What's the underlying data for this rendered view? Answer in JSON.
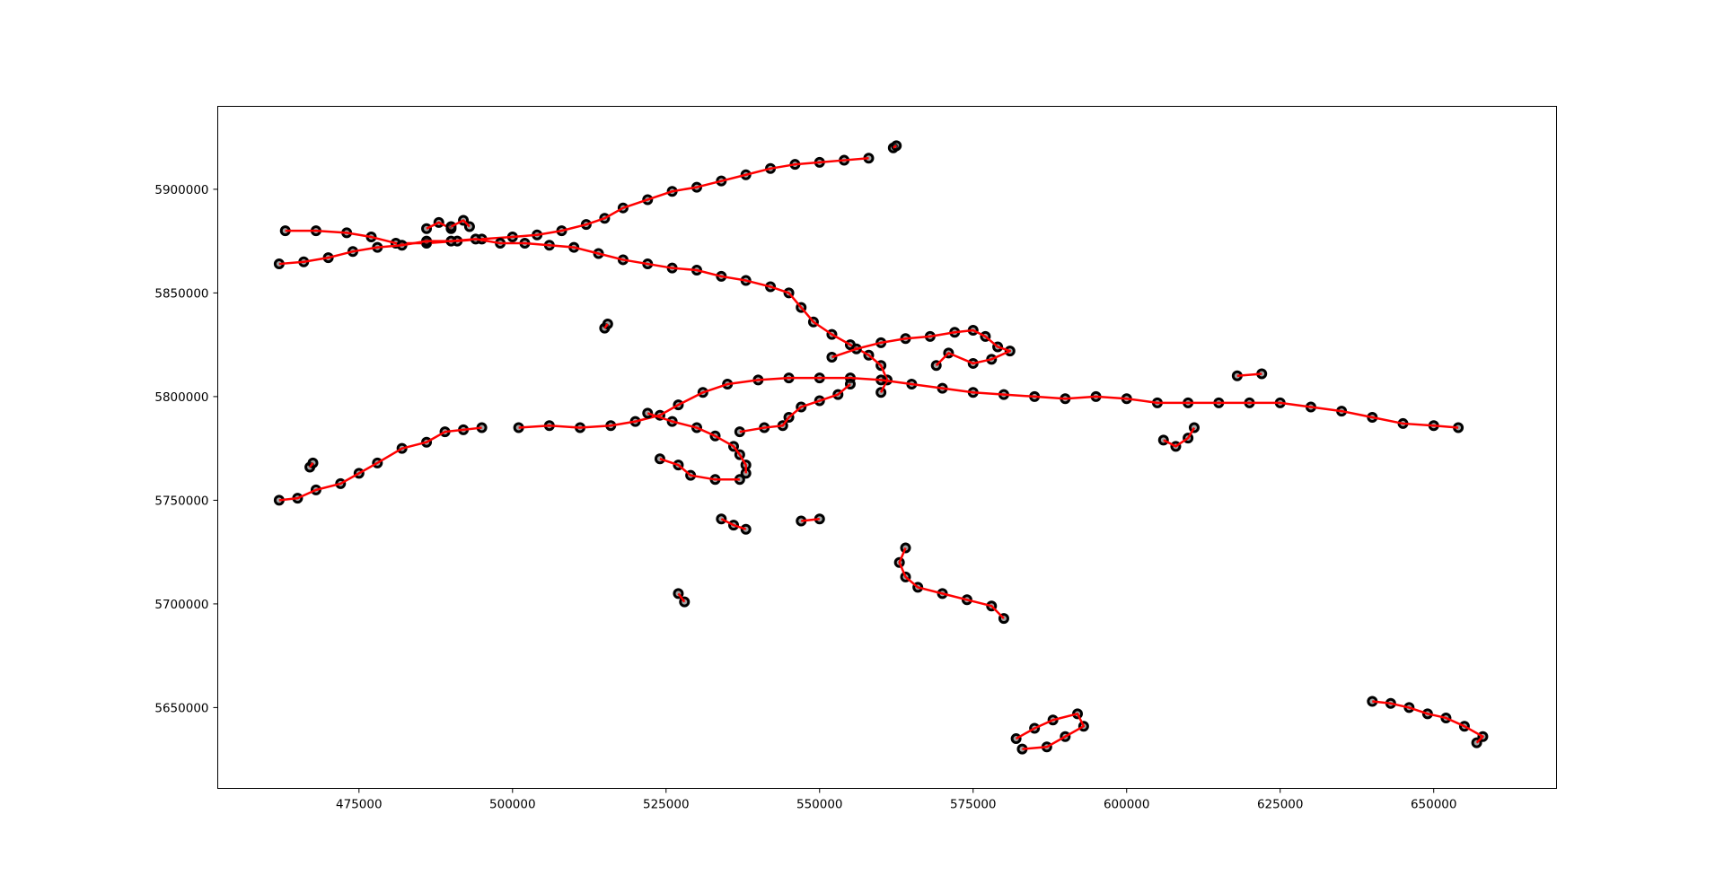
{
  "chart_data": {
    "type": "scatter",
    "title": "",
    "xlabel": "",
    "ylabel": "",
    "xlim": [
      452000,
      670000
    ],
    "ylim": [
      5611000,
      5940000
    ],
    "grid": false,
    "x_ticks": [
      475000,
      500000,
      525000,
      550000,
      575000,
      600000,
      625000,
      650000
    ],
    "y_ticks": [
      5650000,
      5700000,
      5750000,
      5800000,
      5850000,
      5900000
    ],
    "x_tick_labels": [
      "475000",
      "500000",
      "525000",
      "550000",
      "575000",
      "600000",
      "625000",
      "650000"
    ],
    "y_tick_labels": [
      "5650000",
      "5700000",
      "5750000",
      "5800000",
      "5850000",
      "5900000"
    ],
    "colors": {
      "marker_edge": "#000000",
      "marker_fill": "#555555",
      "line": "#ff0000"
    },
    "series": [
      {
        "points": [
          [
            463000,
            5880000
          ],
          [
            468000,
            5880000
          ],
          [
            473000,
            5879000
          ],
          [
            477000,
            5877000
          ],
          [
            481000,
            5874000
          ],
          [
            486000,
            5874000
          ],
          [
            491000,
            5875000
          ],
          [
            495000,
            5876000
          ],
          [
            500000,
            5877000
          ],
          [
            504000,
            5878000
          ],
          [
            508000,
            5880000
          ],
          [
            512000,
            5883000
          ],
          [
            515000,
            5886000
          ],
          [
            518000,
            5891000
          ],
          [
            522000,
            5895000
          ],
          [
            526000,
            5899000
          ],
          [
            530000,
            5901000
          ],
          [
            534000,
            5904000
          ],
          [
            538000,
            5907000
          ],
          [
            542000,
            5910000
          ],
          [
            546000,
            5912000
          ],
          [
            550000,
            5913000
          ],
          [
            554000,
            5914000
          ],
          [
            558000,
            5915000
          ]
        ]
      },
      {
        "points": [
          [
            462000,
            5864000
          ],
          [
            466000,
            5865000
          ],
          [
            470000,
            5867000
          ],
          [
            474000,
            5870000
          ],
          [
            478000,
            5872000
          ],
          [
            482000,
            5873000
          ],
          [
            486000,
            5875000
          ],
          [
            490000,
            5875000
          ],
          [
            494000,
            5876000
          ],
          [
            498000,
            5874000
          ],
          [
            502000,
            5874000
          ],
          [
            506000,
            5873000
          ],
          [
            510000,
            5872000
          ],
          [
            514000,
            5869000
          ],
          [
            518000,
            5866000
          ],
          [
            522000,
            5864000
          ],
          [
            526000,
            5862000
          ],
          [
            530000,
            5861000
          ],
          [
            534000,
            5858000
          ],
          [
            538000,
            5856000
          ],
          [
            542000,
            5853000
          ],
          [
            545000,
            5850000
          ],
          [
            547000,
            5843000
          ],
          [
            549000,
            5836000
          ],
          [
            552000,
            5830000
          ],
          [
            555000,
            5825000
          ],
          [
            558000,
            5820000
          ],
          [
            560000,
            5815000
          ],
          [
            561000,
            5808000
          ],
          [
            560000,
            5802000
          ]
        ]
      },
      {
        "points": [
          [
            501000,
            5785000
          ],
          [
            506000,
            5786000
          ],
          [
            511000,
            5785000
          ],
          [
            516000,
            5786000
          ],
          [
            520000,
            5788000
          ],
          [
            524000,
            5791000
          ],
          [
            527000,
            5796000
          ],
          [
            531000,
            5802000
          ],
          [
            535000,
            5806000
          ],
          [
            540000,
            5808000
          ],
          [
            545000,
            5809000
          ],
          [
            550000,
            5809000
          ],
          [
            555000,
            5809000
          ],
          [
            560000,
            5808000
          ],
          [
            565000,
            5806000
          ],
          [
            570000,
            5804000
          ],
          [
            575000,
            5802000
          ],
          [
            580000,
            5801000
          ],
          [
            585000,
            5800000
          ],
          [
            590000,
            5799000
          ],
          [
            595000,
            5800000
          ],
          [
            600000,
            5799000
          ],
          [
            605000,
            5797000
          ],
          [
            610000,
            5797000
          ],
          [
            615000,
            5797000
          ],
          [
            620000,
            5797000
          ],
          [
            625000,
            5797000
          ],
          [
            630000,
            5795000
          ],
          [
            635000,
            5793000
          ],
          [
            640000,
            5790000
          ],
          [
            645000,
            5787000
          ],
          [
            650000,
            5786000
          ],
          [
            654000,
            5785000
          ]
        ]
      },
      {
        "points": [
          [
            462000,
            5750000
          ],
          [
            465000,
            5751000
          ],
          [
            468000,
            5755000
          ],
          [
            472000,
            5758000
          ],
          [
            475000,
            5763000
          ],
          [
            478000,
            5768000
          ],
          [
            482000,
            5775000
          ],
          [
            486000,
            5778000
          ],
          [
            489000,
            5783000
          ],
          [
            492000,
            5784000
          ],
          [
            495000,
            5785000
          ]
        ]
      },
      {
        "points": [
          [
            552000,
            5819000
          ],
          [
            556000,
            5823000
          ],
          [
            560000,
            5826000
          ],
          [
            564000,
            5828000
          ],
          [
            568000,
            5829000
          ],
          [
            572000,
            5831000
          ],
          [
            575000,
            5832000
          ],
          [
            577000,
            5829000
          ],
          [
            579000,
            5824000
          ],
          [
            581000,
            5822000
          ],
          [
            578000,
            5818000
          ],
          [
            575000,
            5816000
          ],
          [
            571000,
            5821000
          ],
          [
            569000,
            5815000
          ]
        ]
      },
      {
        "points": [
          [
            522000,
            5792000
          ],
          [
            526000,
            5788000
          ],
          [
            530000,
            5785000
          ],
          [
            533000,
            5781000
          ],
          [
            536000,
            5776000
          ],
          [
            537000,
            5772000
          ],
          [
            538000,
            5767000
          ],
          [
            538000,
            5763000
          ]
        ]
      },
      {
        "points": [
          [
            524000,
            5770000
          ],
          [
            527000,
            5767000
          ],
          [
            529000,
            5762000
          ],
          [
            533000,
            5760000
          ],
          [
            537000,
            5760000
          ]
        ]
      },
      {
        "points": [
          [
            537000,
            5783000
          ],
          [
            541000,
            5785000
          ],
          [
            544000,
            5786000
          ],
          [
            545000,
            5790000
          ],
          [
            547000,
            5795000
          ],
          [
            550000,
            5798000
          ],
          [
            553000,
            5801000
          ],
          [
            555000,
            5806000
          ]
        ]
      },
      {
        "points": [
          [
            564000,
            5727000
          ],
          [
            563000,
            5720000
          ],
          [
            564000,
            5713000
          ],
          [
            566000,
            5708000
          ],
          [
            570000,
            5705000
          ],
          [
            574000,
            5702000
          ],
          [
            578000,
            5699000
          ],
          [
            580000,
            5693000
          ]
        ]
      },
      {
        "points": [
          [
            582000,
            5635000
          ],
          [
            585000,
            5640000
          ],
          [
            588000,
            5644000
          ],
          [
            592000,
            5647000
          ],
          [
            593000,
            5641000
          ],
          [
            590000,
            5636000
          ],
          [
            587000,
            5631000
          ],
          [
            583000,
            5630000
          ]
        ]
      },
      {
        "points": [
          [
            640000,
            5653000
          ],
          [
            643000,
            5652000
          ],
          [
            646000,
            5650000
          ],
          [
            649000,
            5647000
          ],
          [
            652000,
            5645000
          ],
          [
            655000,
            5641000
          ],
          [
            658000,
            5636000
          ],
          [
            657000,
            5633000
          ]
        ]
      },
      {
        "points": [
          [
            606000,
            5779000
          ],
          [
            608000,
            5776000
          ],
          [
            610000,
            5780000
          ],
          [
            611000,
            5785000
          ]
        ]
      },
      {
        "points": [
          [
            534000,
            5741000
          ],
          [
            536000,
            5738000
          ],
          [
            538000,
            5736000
          ]
        ]
      },
      {
        "points": [
          [
            547000,
            5740000
          ],
          [
            550000,
            5741000
          ]
        ]
      },
      {
        "points": [
          [
            527000,
            5705000
          ],
          [
            528000,
            5701000
          ]
        ]
      },
      {
        "points": [
          [
            618000,
            5810000
          ],
          [
            622000,
            5811000
          ]
        ]
      },
      {
        "points": [
          [
            515000,
            5833000
          ],
          [
            515500,
            5835000
          ]
        ]
      },
      {
        "points": [
          [
            467000,
            5766000
          ],
          [
            467500,
            5768000
          ]
        ]
      },
      {
        "points": [
          [
            562000,
            5920000
          ],
          [
            562500,
            5921000
          ]
        ]
      },
      {
        "points": [
          [
            486000,
            5881000
          ],
          [
            488000,
            5884000
          ],
          [
            490000,
            5881000
          ]
        ]
      },
      {
        "points": [
          [
            490000,
            5882000
          ],
          [
            492000,
            5885000
          ],
          [
            493000,
            5882000
          ]
        ]
      }
    ]
  }
}
